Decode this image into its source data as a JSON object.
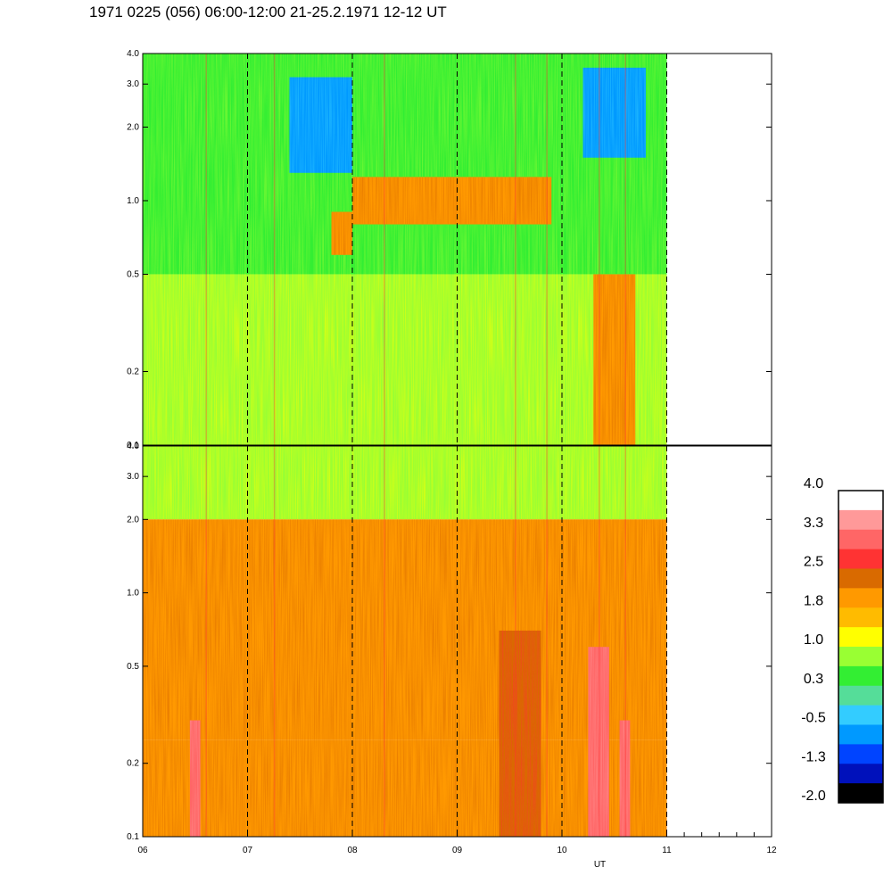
{
  "title": "1971 0225 (056) 06:00-12:00 21-25.2.1971  12-12 UT",
  "chart_data": {
    "type": "heatmap",
    "xlabel": "UT",
    "x_range": [
      6,
      12
    ],
    "x_ticks": [
      "06",
      "07",
      "08",
      "09",
      "10",
      "11",
      "12"
    ],
    "data_end_x": 11,
    "y_scale": "log",
    "y_range": [
      0.1,
      4.0
    ],
    "y_ticks": [
      "0.1",
      "0.2",
      "0.5",
      "1.0",
      "2.0",
      "3.0",
      "4.0"
    ],
    "dashed_vertical_lines_x": [
      7,
      8,
      9,
      10,
      11
    ],
    "colorbar": {
      "labels": [
        "4.0",
        "3.3",
        "2.5",
        "1.8",
        "1.0",
        "0.3",
        "-0.5",
        "-1.3",
        "-2.0"
      ],
      "colors": [
        "#ffffff",
        "#ff9999",
        "#ff6666",
        "#ff3333",
        "#d96a00",
        "#ff9900",
        "#ffbb00",
        "#ffff00",
        "#99ff33",
        "#33ee33",
        "#55dd99",
        "#33ccff",
        "#0099ff",
        "#0044ff",
        "#0011bb",
        "#000000"
      ]
    },
    "panels": [
      {
        "name": "upper",
        "regions": [
          {
            "x": [
              6,
              11
            ],
            "y": [
              0.5,
              4.0
            ],
            "value": 0.3
          },
          {
            "x": [
              7.4,
              8.0
            ],
            "y": [
              1.3,
              3.2
            ],
            "value": -0.5
          },
          {
            "x": [
              10.2,
              10.8
            ],
            "y": [
              1.5,
              3.5
            ],
            "value": -0.5
          },
          {
            "x": [
              8.0,
              9.9
            ],
            "y": [
              0.8,
              1.25
            ],
            "value": 1.8
          },
          {
            "x": [
              7.8,
              8.0
            ],
            "y": [
              0.6,
              0.9
            ],
            "value": 1.8
          },
          {
            "x": [
              6,
              11
            ],
            "y": [
              0.1,
              0.5
            ],
            "value": 1.0
          },
          {
            "x": [
              10.3,
              10.7
            ],
            "y": [
              0.1,
              0.5
            ],
            "value": 1.8
          }
        ]
      },
      {
        "name": "lower",
        "regions": [
          {
            "x": [
              6,
              11
            ],
            "y": [
              2.0,
              4.0
            ],
            "value": 1.0
          },
          {
            "x": [
              6,
              11
            ],
            "y": [
              0.25,
              2.0
            ],
            "value": 1.8
          },
          {
            "x": [
              6,
              11
            ],
            "y": [
              0.1,
              0.25
            ],
            "value": 2.0
          },
          {
            "x": [
              9.4,
              9.8
            ],
            "y": [
              0.1,
              0.7
            ],
            "value": 2.5
          },
          {
            "x": [
              6.45,
              6.55
            ],
            "y": [
              0.1,
              0.3
            ],
            "value": 3.0
          },
          {
            "x": [
              10.25,
              10.45
            ],
            "y": [
              0.1,
              0.6
            ],
            "value": 3.0
          },
          {
            "x": [
              10.55,
              10.65
            ],
            "y": [
              0.1,
              0.3
            ],
            "value": 3.0
          }
        ]
      }
    ]
  }
}
